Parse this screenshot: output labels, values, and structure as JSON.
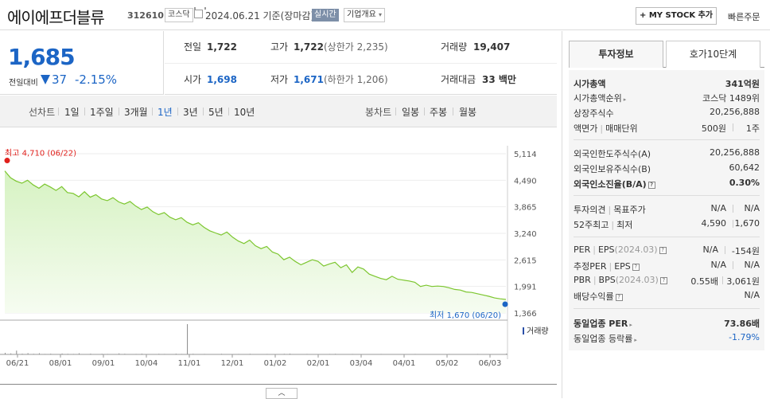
{
  "header": {
    "stock_name": "에이에프더블류",
    "stock_code": "312610",
    "market": "코스닥",
    "date_text": "2024.06.21  기준(장마감)",
    "realtime": "실시간",
    "company_info": "기업개요",
    "mystock_label": "+ MY STOCK 추가",
    "quick_order": "빠른주문"
  },
  "price": {
    "current": "1,685",
    "change_label": "전일대비",
    "change_value": "37",
    "change_pct": "-2.15%",
    "direction": "down"
  },
  "summary": {
    "row1": [
      {
        "label": "전일",
        "value": "1,722"
      },
      {
        "label": "고가",
        "value": "1,722",
        "sub": "(상한가 2,235)"
      },
      {
        "label": "거래량",
        "value": "19,407"
      }
    ],
    "row2": [
      {
        "label": "시가",
        "value": "1,698"
      },
      {
        "label": "저가",
        "value": "1,671",
        "sub": "(하한가 1,206)"
      },
      {
        "label": "거래대금",
        "value": "33 백만"
      }
    ]
  },
  "periods": {
    "line_label": "선차트",
    "line_tabs": [
      "1일",
      "1주일",
      "3개월",
      "1년",
      "3년",
      "5년",
      "10년"
    ],
    "active": "1년",
    "candle_label": "봉차트",
    "candle_tabs": [
      "일봉",
      "주봉",
      "월봉"
    ]
  },
  "chart_data": {
    "type": "area",
    "title": "",
    "max_label": "최고 4,710 (06/22)",
    "min_label": "최저 1,670 (06/20)",
    "y_ticks": [
      "5,114",
      "4,490",
      "3,865",
      "3,240",
      "2,615",
      "1,991",
      "1,366"
    ],
    "ylim": [
      1366,
      5114
    ],
    "x_ticks": [
      "06/21",
      "08/01",
      "09/01",
      "10/04",
      "11/01",
      "12/01",
      "01/02",
      "02/01",
      "03/04",
      "04/01",
      "05/02",
      "06/03"
    ],
    "volume_label": "거래량",
    "series": [
      {
        "values": [
          4710,
          4550,
          4470,
          4420,
          4490,
          4380,
          4300,
          4400,
          4330,
          4250,
          4340,
          4200,
          4180,
          4100,
          4220,
          4090,
          4150,
          4050,
          4010,
          4080,
          3980,
          3930,
          3990,
          3880,
          3800,
          3860,
          3750,
          3680,
          3730,
          3620,
          3560,
          3610,
          3500,
          3440,
          3490,
          3380,
          3300,
          3250,
          3200,
          3270,
          3150,
          3060,
          3000,
          3080,
          2950,
          2880,
          2930,
          2800,
          2750,
          2620,
          2680,
          2580,
          2500,
          2560,
          2620,
          2580,
          2470,
          2520,
          2560,
          2430,
          2500,
          2320,
          2450,
          2400,
          2280,
          2230,
          2180,
          2150,
          2230,
          2160,
          2140,
          2120,
          2090,
          1990,
          2020,
          1990,
          2000,
          1990,
          1960,
          1920,
          1905,
          1860,
          1850,
          1820,
          1790,
          1760,
          1720,
          1700,
          1685
        ]
      }
    ],
    "volume": [
      12,
      8,
      30,
      6,
      10,
      5,
      9,
      4,
      6,
      3,
      7,
      5,
      4,
      9,
      3,
      6,
      2,
      5,
      4,
      3,
      8,
      5,
      3,
      4,
      6,
      3,
      2,
      5,
      4,
      3,
      6,
      4,
      240,
      5,
      3,
      4,
      2,
      3,
      5,
      3,
      2,
      4,
      3,
      5,
      2,
      3,
      4,
      2,
      3,
      5,
      6,
      3,
      2,
      4,
      3,
      2,
      3,
      4,
      5,
      3,
      2,
      4,
      3,
      2,
      3,
      2,
      4,
      3,
      2,
      3,
      2,
      3,
      4,
      2,
      3,
      2,
      3,
      2,
      4,
      3,
      2,
      3,
      2,
      4,
      3,
      2,
      3,
      2,
      6
    ]
  },
  "colors": {
    "down": "#1c65c5",
    "up": "#e0201c",
    "line": "#7cc62f",
    "fill_top": "#d6f2c2",
    "fill_bottom": "#f6fcf1"
  },
  "sidebar": {
    "tabs": [
      "투자정보",
      "호가10단계"
    ],
    "active_tab": "투자정보",
    "market_cap_label": "시가총액",
    "market_cap_value": "341억원",
    "rank_label": "시가총액순위",
    "rank_value": "코스닥 1489위",
    "shares_label": "상장주식수",
    "shares_value": "20,256,888",
    "face_label": "액면가",
    "unit_label": "매매단위",
    "face_value": "500원",
    "unit_value": "1주",
    "foreign_limit_label": "외국인한도주식수(A)",
    "foreign_limit_value": "20,256,888",
    "foreign_hold_label": "외국인보유주식수(B)",
    "foreign_hold_value": "60,642",
    "foreign_ratio_label": "외국인소진율(B/A)",
    "foreign_ratio_value": "0.30%",
    "opinion_label": "투자의견",
    "target_label": "목표주가",
    "opinion_value": "N/A",
    "target_value": "N/A",
    "w52_high_label": "52주최고",
    "w52_low_label": "최저",
    "w52_high": "4,590",
    "w52_low": "1,670",
    "per_label": "PER",
    "eps_label": "EPS",
    "per_period": "(2024.03)",
    "per_value": "N/A",
    "eps_value": "-154원",
    "est_per_label": "추정PER",
    "est_eps_label": "EPS",
    "est_per_value": "N/A",
    "est_eps_value": "N/A",
    "pbr_label": "PBR",
    "bps_label": "BPS",
    "pbr_period": "(2024.03)",
    "pbr_value": "0.55배",
    "bps_value": "3,061원",
    "dividend_label": "배당수익률",
    "dividend_value": "N/A",
    "sector_per_label": "동일업종 PER",
    "sector_per_value": "73.86배",
    "sector_change_label": "동일업종 등락률",
    "sector_change_value": "-1.79%"
  }
}
